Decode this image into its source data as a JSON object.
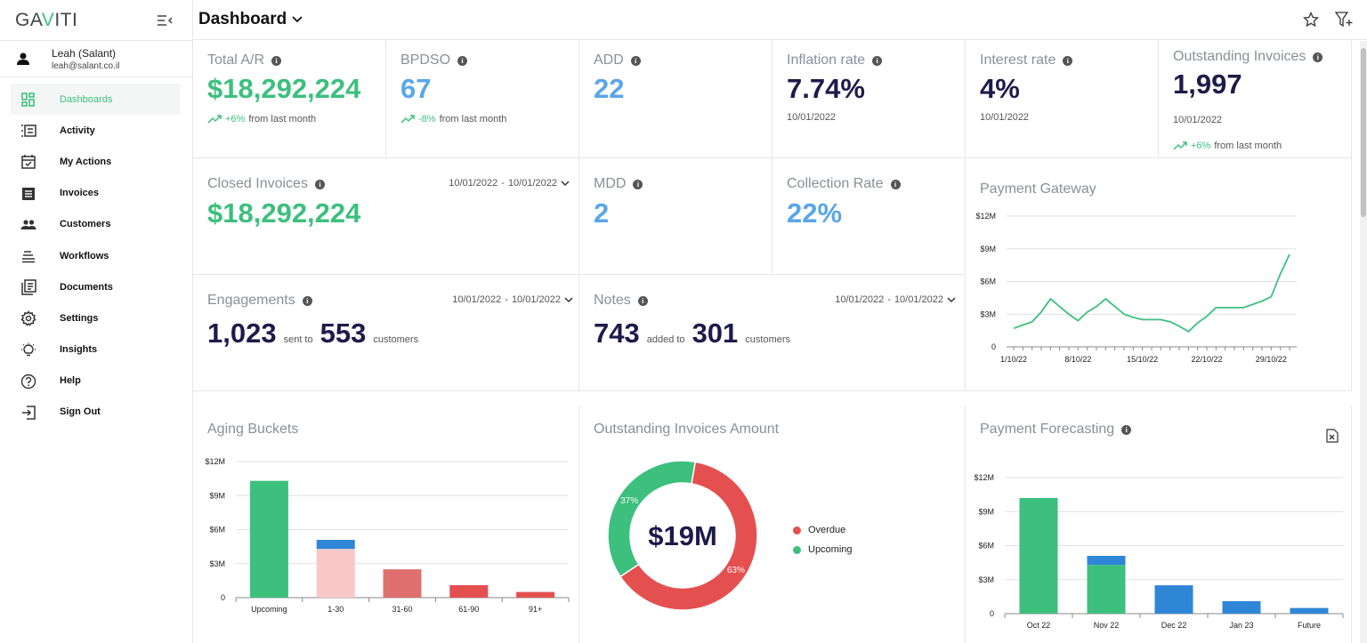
{
  "app": {
    "logo_prefix": "GA",
    "logo_v": "V",
    "logo_suffix": "ITI"
  },
  "user": {
    "name": "Leah (Salant)",
    "email": "leah@salant.co.il"
  },
  "nav": [
    {
      "label": "Dashboards",
      "icon": "dashboard-icon",
      "active": true
    },
    {
      "label": "Activity",
      "icon": "activity-icon"
    },
    {
      "label": "My Actions",
      "icon": "calendar-check-icon"
    },
    {
      "label": "Invoices",
      "icon": "invoice-icon"
    },
    {
      "label": "Customers",
      "icon": "people-icon"
    },
    {
      "label": "Workflows",
      "icon": "workflow-icon"
    },
    {
      "label": "Documents",
      "icon": "documents-icon"
    },
    {
      "label": "Settings",
      "icon": "gear-icon"
    },
    {
      "label": "Insights",
      "icon": "lightbulb-icon"
    },
    {
      "label": "Help",
      "icon": "help-icon"
    },
    {
      "label": "Sign Out",
      "icon": "sign-out-icon"
    }
  ],
  "header": {
    "title": "Dashboard"
  },
  "colors": {
    "green": "#3dbf7e",
    "blue": "#5aa6e8",
    "navy": "#1e1b4b",
    "red": "#e44f4f",
    "pink": "#f8c8c8",
    "salmon": "#e07070",
    "bar_blue": "#2f86d6"
  },
  "kpis": {
    "total_ar": {
      "title": "Total A/R",
      "value": "$18,292,224",
      "trend_pct": "+6%",
      "trend_text": "from last month"
    },
    "bpdso": {
      "title": "BPDSO",
      "value": "67",
      "trend_pct": "-8%",
      "trend_text": "from last month"
    },
    "add": {
      "title": "ADD",
      "value": "22"
    },
    "inflation": {
      "title": "Inflation rate",
      "value": "7.74%",
      "date": "10/01/2022"
    },
    "interest": {
      "title": "Interest rate",
      "value": "4%",
      "date": "10/01/2022"
    },
    "outstanding": {
      "title": "Outstanding Invoices",
      "value": "1,997",
      "date": "10/01/2022",
      "trend_pct": "+6%",
      "trend_text": "from last month"
    },
    "closed": {
      "title": "Closed Invoices",
      "value": "$18,292,224",
      "range_from": "10/01/2022",
      "range_to": "10/01/2022"
    },
    "mdd": {
      "title": "MDD",
      "value": "2"
    },
    "collection": {
      "title": "Collection Rate",
      "value": "22%"
    },
    "engagements": {
      "title": "Engagements",
      "n1": "1,023",
      "t1": "sent to",
      "n2": "553",
      "t2": "customers",
      "range_from": "10/01/2022",
      "range_to": "10/01/2022"
    },
    "notes": {
      "title": "Notes",
      "n1": "743",
      "t1": "added to",
      "n2": "301",
      "t2": "customers",
      "range_from": "10/01/2022",
      "range_to": "10/01/2022"
    }
  },
  "range_sep": "-",
  "panels": {
    "payment_gateway": {
      "title": "Payment  Gateway"
    },
    "aging": {
      "title": "Aging Buckets"
    },
    "outstanding_amount": {
      "title": "Outstanding Invoices Amount",
      "center": "$19M"
    },
    "forecasting": {
      "title": "Payment Forecasting"
    }
  },
  "chart_data": [
    {
      "type": "line",
      "title": "Payment  Gateway",
      "x": [
        "1/10/22",
        "2/10/22",
        "3/10/22",
        "4/10/22",
        "5/10/22",
        "6/10/22",
        "7/10/22",
        "8/10/22",
        "9/10/22",
        "10/10/22",
        "11/10/22",
        "12/10/22",
        "13/10/22",
        "14/10/22",
        "15/10/22",
        "16/10/22",
        "17/10/22",
        "18/10/22",
        "19/10/22",
        "20/10/22",
        "21/10/22",
        "22/10/22",
        "23/10/22",
        "24/10/22",
        "25/10/22",
        "26/10/22",
        "27/10/22",
        "28/10/22",
        "29/10/22",
        "30/10/22",
        "31/10/22"
      ],
      "xtick_labels": [
        "1/10/22",
        "8/10/22",
        "15/10/22",
        "22/10/22",
        "29/10/22"
      ],
      "values": [
        1.7,
        2.0,
        2.3,
        3.2,
        4.4,
        3.7,
        3.0,
        2.4,
        3.2,
        3.7,
        4.4,
        3.7,
        3.0,
        2.7,
        2.5,
        2.5,
        2.5,
        2.3,
        1.9,
        1.4,
        2.2,
        2.8,
        3.6,
        3.6,
        3.6,
        3.6,
        3.9,
        4.2,
        4.6,
        6.7,
        8.5
      ],
      "yticks": [
        "0",
        "$3M",
        "$6M",
        "$9M",
        "$12M"
      ],
      "ylim": [
        0,
        12
      ],
      "grid": true
    },
    {
      "type": "bar",
      "stacked": true,
      "title": "Aging Buckets",
      "categories": [
        "Upcoming",
        "1-30",
        "31-60",
        "61-90",
        "91+"
      ],
      "series": [
        {
          "values": [
            10.3,
            4.3,
            2.5,
            1.1,
            0.5
          ],
          "colors": [
            "#3dbf7e",
            "#f8c8c8",
            "#e07070",
            "#e44f4f",
            "#e44f4f"
          ]
        },
        {
          "values": [
            0,
            0.8,
            0,
            0,
            0
          ],
          "color": "#2f86d6"
        }
      ],
      "yticks": [
        "0",
        "$3M",
        "$6M",
        "$9M",
        "$12M"
      ],
      "ylim": [
        0,
        12
      ],
      "grid": true
    },
    {
      "type": "pie",
      "title": "Outstanding Invoices Amount",
      "donut": true,
      "slices": [
        {
          "name": "Overdue",
          "value": 63,
          "label": "63%",
          "color": "#e44f4f"
        },
        {
          "name": "Upcoming",
          "value": 37,
          "label": "37%",
          "color": "#3dbf7e"
        }
      ],
      "legend": "right"
    },
    {
      "type": "bar",
      "stacked": true,
      "title": "Payment Forecasting",
      "categories": [
        "Oct 22",
        "Nov 22",
        "Dec 22",
        "Jan 23",
        "Future"
      ],
      "series": [
        {
          "values": [
            10.2,
            4.3,
            0,
            0,
            0
          ],
          "color": "#3dbf7e"
        },
        {
          "values": [
            0,
            0.8,
            2.5,
            1.1,
            0.5
          ],
          "color": "#2f86d6"
        }
      ],
      "yticks": [
        "0",
        "$3M",
        "$6M",
        "$9M",
        "$12M"
      ],
      "ylim": [
        0,
        12
      ],
      "grid": true
    }
  ]
}
